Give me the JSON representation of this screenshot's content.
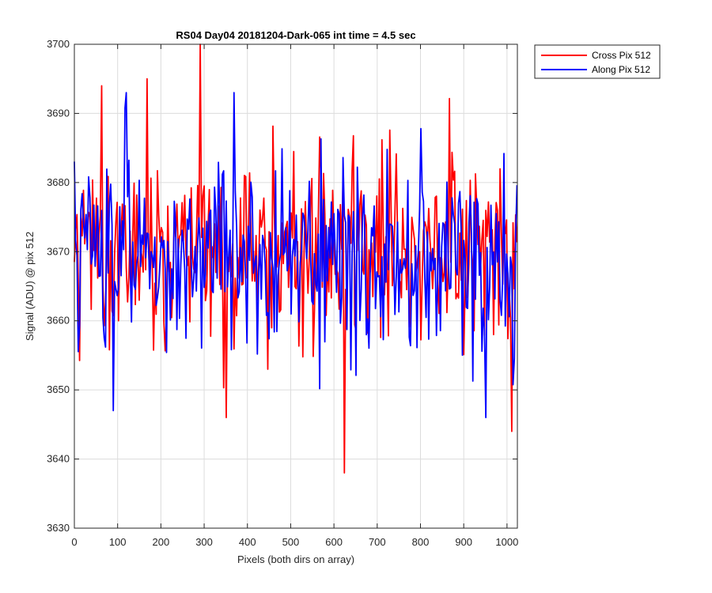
{
  "chart_data": {
    "type": "line",
    "title": "RS04 Day04 20181204-Dark-065 int time = 4.5 sec",
    "xlabel": "Pixels (both dirs on array)",
    "ylabel": "Signal (ADU) @ pix 512",
    "xlim": [
      0,
      1024
    ],
    "ylim": [
      3630,
      3700
    ],
    "xticks": [
      0,
      100,
      200,
      300,
      400,
      500,
      600,
      700,
      800,
      900,
      1000
    ],
    "yticks": [
      3630,
      3640,
      3650,
      3660,
      3670,
      3680,
      3690,
      3700
    ],
    "grid": true,
    "legend_position": "outside-top-right",
    "series": [
      {
        "name": "Cross Pix 512",
        "color": "#ff0000",
        "noise_mean": 3670,
        "noise_range": [
          3638,
          3700
        ],
        "notable_points": [
          [
            62,
            3694
          ],
          [
            168,
            3695
          ],
          [
            290,
            3700
          ],
          [
            625,
            3638
          ],
          [
            1010,
            3644
          ],
          [
            350,
            3646
          ]
        ]
      },
      {
        "name": "Along Pix 512",
        "color": "#0000ff",
        "noise_mean": 3670,
        "noise_range": [
          3646,
          3693
        ],
        "notable_points": [
          [
            120,
            3693
          ],
          [
            368,
            3693
          ],
          [
            90,
            3647
          ],
          [
            950,
            3646
          ]
        ]
      }
    ]
  }
}
